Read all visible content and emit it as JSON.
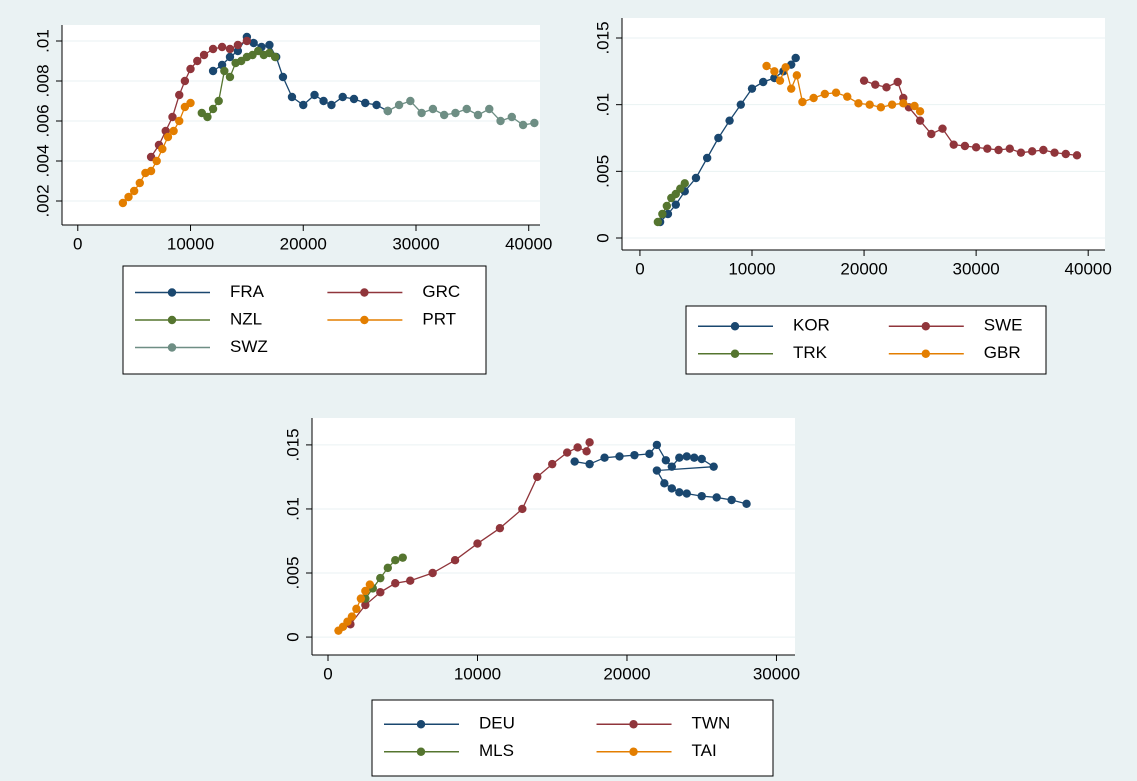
{
  "chart_data": [
    {
      "type": "line",
      "grid": true,
      "xlim": [
        -1400,
        41000
      ],
      "xticks": [
        0,
        10000,
        20000,
        30000,
        40000
      ],
      "ylim": [
        0.0008,
        0.0108
      ],
      "yticks": [
        {
          "value": 0.002,
          "label": ".002"
        },
        {
          "value": 0.004,
          "label": ".004"
        },
        {
          "value": 0.006,
          "label": ".006"
        },
        {
          "value": 0.008,
          "label": ".008"
        },
        {
          "value": 0.01,
          "label": ".01"
        }
      ],
      "series": [
        {
          "name": "FRA",
          "color": "#1a476f",
          "x": [
            12000,
            12800,
            13500,
            14200,
            15000,
            15600,
            16300,
            17000,
            17600,
            18200,
            19000,
            20000,
            21000,
            21800,
            22500,
            23500,
            24500,
            25500,
            26500,
            27500
          ],
          "values": [
            0.0085,
            0.0088,
            0.0092,
            0.0095,
            0.0102,
            0.0099,
            0.0097,
            0.0098,
            0.0092,
            0.0082,
            0.0072,
            0.0068,
            0.0073,
            0.007,
            0.0068,
            0.0072,
            0.0071,
            0.0069,
            0.0068,
            0.0065
          ]
        },
        {
          "name": "GRC",
          "color": "#90353b",
          "x": [
            6500,
            7200,
            7800,
            8400,
            9000,
            9500,
            10000,
            10600,
            11200,
            12000,
            12800,
            13500,
            14200,
            15000
          ],
          "values": [
            0.0042,
            0.0048,
            0.0055,
            0.0062,
            0.0073,
            0.008,
            0.0086,
            0.009,
            0.0093,
            0.0096,
            0.0097,
            0.0096,
            0.0098,
            0.01
          ]
        },
        {
          "name": "NZL",
          "color": "#55752f",
          "x": [
            11000,
            11500,
            12000,
            12500,
            13000,
            13500,
            14000,
            14500,
            15000,
            15500,
            16000,
            16500,
            17000,
            17500
          ],
          "values": [
            0.0064,
            0.0062,
            0.0066,
            0.007,
            0.0085,
            0.0082,
            0.0089,
            0.009,
            0.0092,
            0.0093,
            0.0095,
            0.0093,
            0.0094,
            0.0092
          ]
        },
        {
          "name": "PRT",
          "color": "#e37e00",
          "x": [
            4000,
            4500,
            5000,
            5500,
            6000,
            6500,
            7000,
            7500,
            8000,
            8500,
            9000,
            9500,
            10000
          ],
          "values": [
            0.0019,
            0.0022,
            0.0025,
            0.0029,
            0.0034,
            0.0035,
            0.004,
            0.0046,
            0.0052,
            0.0055,
            0.006,
            0.0067,
            0.0069
          ]
        },
        {
          "name": "SWZ",
          "color": "#6e8e84",
          "x": [
            27500,
            28500,
            29500,
            30500,
            31500,
            32500,
            33500,
            34500,
            35500,
            36500,
            37500,
            38500,
            39500,
            40500
          ],
          "values": [
            0.0065,
            0.0068,
            0.007,
            0.0064,
            0.0066,
            0.0063,
            0.0064,
            0.0066,
            0.0063,
            0.0066,
            0.006,
            0.0062,
            0.0058,
            0.0059
          ]
        }
      ]
    },
    {
      "type": "line",
      "grid": true,
      "xlim": [
        -1600,
        41500
      ],
      "xticks": [
        0,
        10000,
        20000,
        30000,
        40000
      ],
      "ylim": [
        -0.0009,
        0.0165
      ],
      "yticks": [
        0,
        {
          "value": 0.005,
          "label": ".005"
        },
        {
          "value": 0.01,
          "label": ".01"
        },
        {
          "value": 0.015,
          "label": ".015"
        }
      ],
      "series": [
        {
          "name": "KOR",
          "color": "#1a476f",
          "x": [
            1800,
            2500,
            3200,
            4000,
            5000,
            6000,
            7000,
            8000,
            9000,
            10000,
            11000,
            12000,
            12800,
            13500,
            13900
          ],
          "values": [
            0.0012,
            0.0018,
            0.0025,
            0.0035,
            0.0045,
            0.006,
            0.0075,
            0.0088,
            0.01,
            0.0112,
            0.0117,
            0.012,
            0.0125,
            0.013,
            0.0135
          ]
        },
        {
          "name": "SWE",
          "color": "#90353b",
          "x": [
            20000,
            21000,
            22000,
            23000,
            23500,
            24000,
            25000,
            26000,
            27000,
            28000,
            29000,
            30000,
            31000,
            32000,
            33000,
            34000,
            35000,
            36000,
            37000,
            38000,
            39000
          ],
          "values": [
            0.0118,
            0.0115,
            0.0113,
            0.0117,
            0.0105,
            0.0098,
            0.0088,
            0.0078,
            0.0082,
            0.007,
            0.0069,
            0.0068,
            0.0067,
            0.0066,
            0.0067,
            0.0064,
            0.0065,
            0.0066,
            0.0064,
            0.0063,
            0.0062
          ]
        },
        {
          "name": "TRK",
          "color": "#55752f",
          "x": [
            1600,
            2000,
            2400,
            2800,
            3200,
            3600,
            4000
          ],
          "values": [
            0.0012,
            0.0018,
            0.0024,
            0.003,
            0.0033,
            0.0037,
            0.0041
          ]
        },
        {
          "name": "GBR",
          "color": "#e37e00",
          "x": [
            11300,
            12000,
            12500,
            13000,
            13500,
            14000,
            14500,
            15500,
            16500,
            17500,
            18500,
            19500,
            20500,
            21500,
            22500,
            23500,
            24500,
            25000
          ],
          "values": [
            0.0129,
            0.0125,
            0.0118,
            0.0128,
            0.0112,
            0.0122,
            0.0102,
            0.0105,
            0.0108,
            0.0109,
            0.0106,
            0.0101,
            0.01,
            0.0098,
            0.01,
            0.0101,
            0.0099,
            0.0095
          ]
        }
      ]
    },
    {
      "type": "line",
      "grid": true,
      "xlim": [
        -1070,
        31240
      ],
      "xticks": [
        0,
        10000,
        20000,
        30000
      ],
      "ylim": [
        -0.0014,
        0.0171
      ],
      "yticks": [
        0,
        {
          "value": 0.005,
          "label": ".005"
        },
        {
          "value": 0.01,
          "label": ".01"
        },
        {
          "value": 0.015,
          "label": ".015"
        }
      ],
      "series": [
        {
          "name": "DEU",
          "color": "#1a476f",
          "x": [
            16500,
            17500,
            18500,
            19500,
            20500,
            21500,
            22000,
            22600,
            23000,
            23500,
            24000,
            24500,
            25000,
            25800,
            22000,
            22500,
            23000,
            23500,
            24000,
            25000,
            26000,
            27000,
            28000
          ],
          "values": [
            0.0137,
            0.0135,
            0.014,
            0.0141,
            0.0142,
            0.0143,
            0.015,
            0.0138,
            0.0133,
            0.014,
            0.0141,
            0.014,
            0.0139,
            0.0133,
            0.013,
            0.012,
            0.0116,
            0.0113,
            0.0112,
            0.011,
            0.0109,
            0.0107,
            0.0104
          ]
        },
        {
          "name": "TWN",
          "color": "#90353b",
          "x": [
            1500,
            2500,
            3500,
            4500,
            5500,
            7000,
            8500,
            10000,
            11500,
            13000,
            14000,
            15000,
            16000,
            16700,
            17300,
            17500
          ],
          "values": [
            0.001,
            0.0025,
            0.0035,
            0.0042,
            0.0044,
            0.005,
            0.006,
            0.0073,
            0.0085,
            0.01,
            0.0125,
            0.0135,
            0.0144,
            0.0148,
            0.0145,
            0.0152
          ]
        },
        {
          "name": "MLS",
          "color": "#55752f",
          "x": [
            2500,
            3000,
            3500,
            4000,
            4500,
            5000
          ],
          "values": [
            0.003,
            0.0038,
            0.0046,
            0.0054,
            0.006,
            0.0062
          ]
        },
        {
          "name": "TAI",
          "color": "#e37e00",
          "x": [
            700,
            1000,
            1300,
            1600,
            1900,
            2200,
            2500,
            2800
          ],
          "values": [
            0.0005,
            0.0008,
            0.0012,
            0.0016,
            0.0022,
            0.003,
            0.0036,
            0.0041
          ]
        }
      ]
    }
  ]
}
